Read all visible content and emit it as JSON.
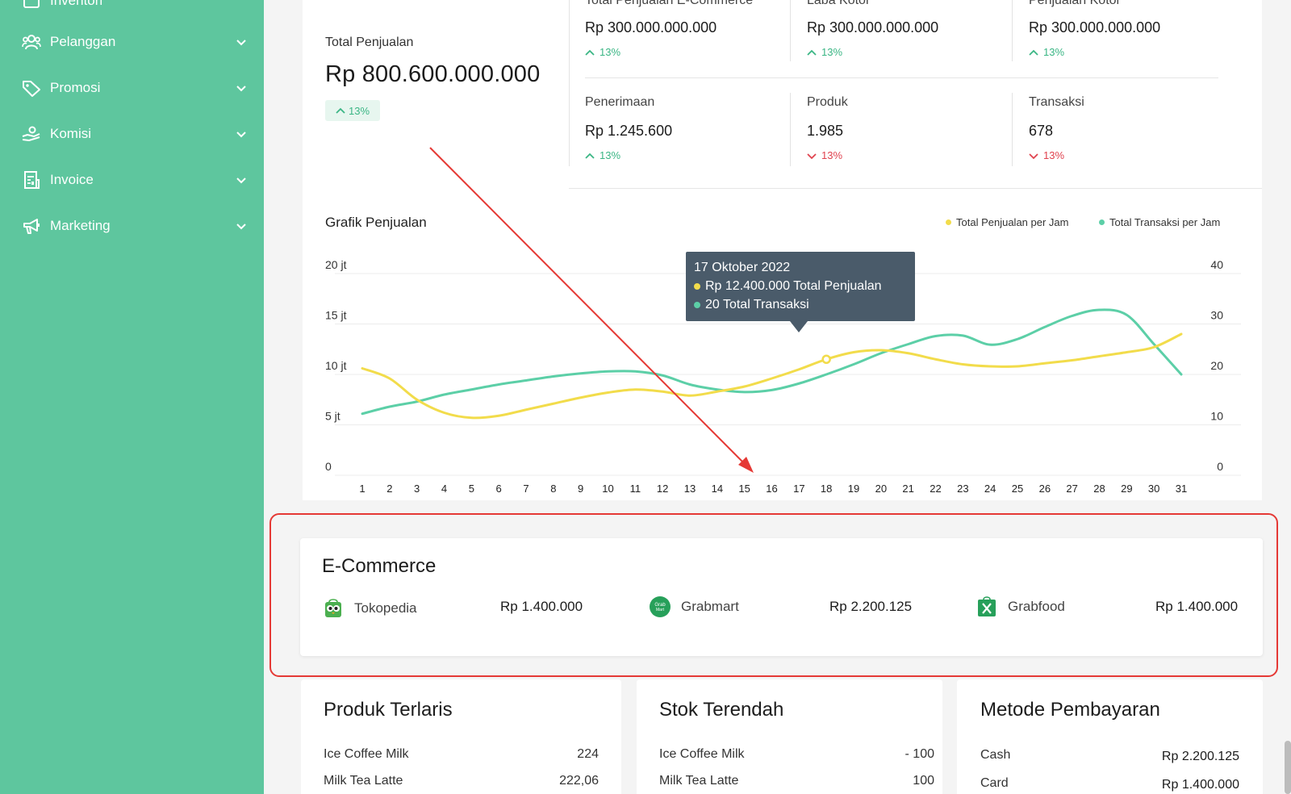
{
  "sidebar": {
    "items": [
      {
        "label": "Inventori",
        "icon": "box-icon"
      },
      {
        "label": "Pelanggan",
        "icon": "users-icon"
      },
      {
        "label": "Promosi",
        "icon": "tag-icon"
      },
      {
        "label": "Komisi",
        "icon": "hand-coin-icon"
      },
      {
        "label": "Invoice",
        "icon": "document-icon"
      },
      {
        "label": "Marketing",
        "icon": "megaphone-icon"
      }
    ]
  },
  "summary": {
    "total_label": "Total Penjualan",
    "total_value": "Rp 800.600.000.000",
    "total_delta": "13%",
    "stats": [
      {
        "label": "Total Penjualan E-Commerce",
        "value": "Rp 300.000.000.000",
        "delta": "13%",
        "trend": "up"
      },
      {
        "label": "Laba Kotor",
        "value": "Rp 300.000.000.000",
        "delta": "13%",
        "trend": "up"
      },
      {
        "label": "Penjualan Kotor",
        "value": "Rp 300.000.000.000",
        "delta": "13%",
        "trend": "up"
      },
      {
        "label": "Penerimaan",
        "value": "Rp 1.245.600",
        "delta": "13%",
        "trend": "up"
      },
      {
        "label": "Produk",
        "value": "1.985",
        "delta": "13%",
        "trend": "down"
      },
      {
        "label": "Transaksi",
        "value": "678",
        "delta": "13%",
        "trend": "down"
      }
    ]
  },
  "chart": {
    "title": "Grafik Penjualan",
    "legend": [
      "Total Penjualan per Jam",
      "Total Transaksi per Jam"
    ],
    "tooltip": {
      "date": "17 Oktober 2022",
      "line1": "Rp 12.400.000 Total Penjualan",
      "line2": "20 Total Transaksi"
    }
  },
  "chart_data": {
    "type": "line",
    "title": "Grafik Penjualan",
    "x": [
      1,
      2,
      3,
      4,
      5,
      6,
      7,
      8,
      9,
      10,
      11,
      12,
      13,
      14,
      15,
      16,
      17,
      18,
      19,
      20,
      21,
      22,
      23,
      24,
      25,
      26,
      27,
      28,
      29,
      30,
      31
    ],
    "left_axis": {
      "ticks": [
        "0",
        "5 jt",
        "10 jt",
        "15 jt",
        "20 jt"
      ],
      "range": [
        0,
        20000000
      ]
    },
    "right_axis": {
      "ticks": [
        "0",
        "10",
        "20",
        "30",
        "40"
      ],
      "range": [
        0,
        40
      ]
    },
    "legend_position": "top-right",
    "grid": true,
    "series": [
      {
        "name": "Total Penjualan per Jam",
        "axis": "left",
        "color": "#f2dc4b",
        "values": [
          10600000,
          9600000,
          7500000,
          6200000,
          5700000,
          5900000,
          6500000,
          7100000,
          7700000,
          8200000,
          8500000,
          8300000,
          7900000,
          8300000,
          8800000,
          9600000,
          10500000,
          11500000,
          12200000,
          12400000,
          12100000,
          11500000,
          11000000,
          10800000,
          10800000,
          11100000,
          11400000,
          11800000,
          12200000,
          12700000,
          14000000
        ]
      },
      {
        "name": "Total Transaksi per Jam",
        "axis": "right",
        "color": "#5ccfa7",
        "values": [
          12.2,
          13.6,
          14.6,
          16.0,
          17.0,
          18.0,
          18.8,
          19.6,
          20.2,
          20.6,
          20.6,
          19.8,
          18.0,
          17.0,
          16.5,
          16.9,
          18.2,
          20.0,
          22.0,
          24.2,
          26.0,
          27.6,
          27.7,
          25.9,
          27.0,
          29.4,
          31.6,
          32.8,
          31.8,
          26.0,
          20.0
        ]
      }
    ]
  },
  "ecommerce": {
    "title": "E-Commerce",
    "items": [
      {
        "name": "Tokopedia",
        "value": "Rp 1.400.000",
        "icon": "tokopedia-logo-icon"
      },
      {
        "name": "Grabmart",
        "value": "Rp 2.200.125",
        "icon": "grabmart-logo-icon"
      },
      {
        "name": "Grabfood",
        "value": "Rp 1.400.000",
        "icon": "grabfood-logo-icon"
      }
    ]
  },
  "produk_terlaris": {
    "title": "Produk Terlaris",
    "rows": [
      {
        "name": "Ice Coffee Milk",
        "value": "224"
      },
      {
        "name": "Milk Tea Latte",
        "value": "222,06"
      }
    ]
  },
  "stok_terendah": {
    "title": "Stok Terendah",
    "rows": [
      {
        "name": "Ice Coffee Milk",
        "value": "- 100"
      },
      {
        "name": "Milk Tea Latte",
        "value": "100"
      }
    ]
  },
  "metode_pembayaran": {
    "title": "Metode Pembayaran",
    "rows": [
      {
        "name": "Cash",
        "value": "Rp 2.200.125"
      },
      {
        "name": "Card",
        "value": "Rp 1.400.000"
      }
    ]
  },
  "colors": {
    "sidebar": "#5ec69e",
    "accent_up": "#3bb685",
    "accent_down": "#e0434f",
    "highlight": "#e53935"
  }
}
